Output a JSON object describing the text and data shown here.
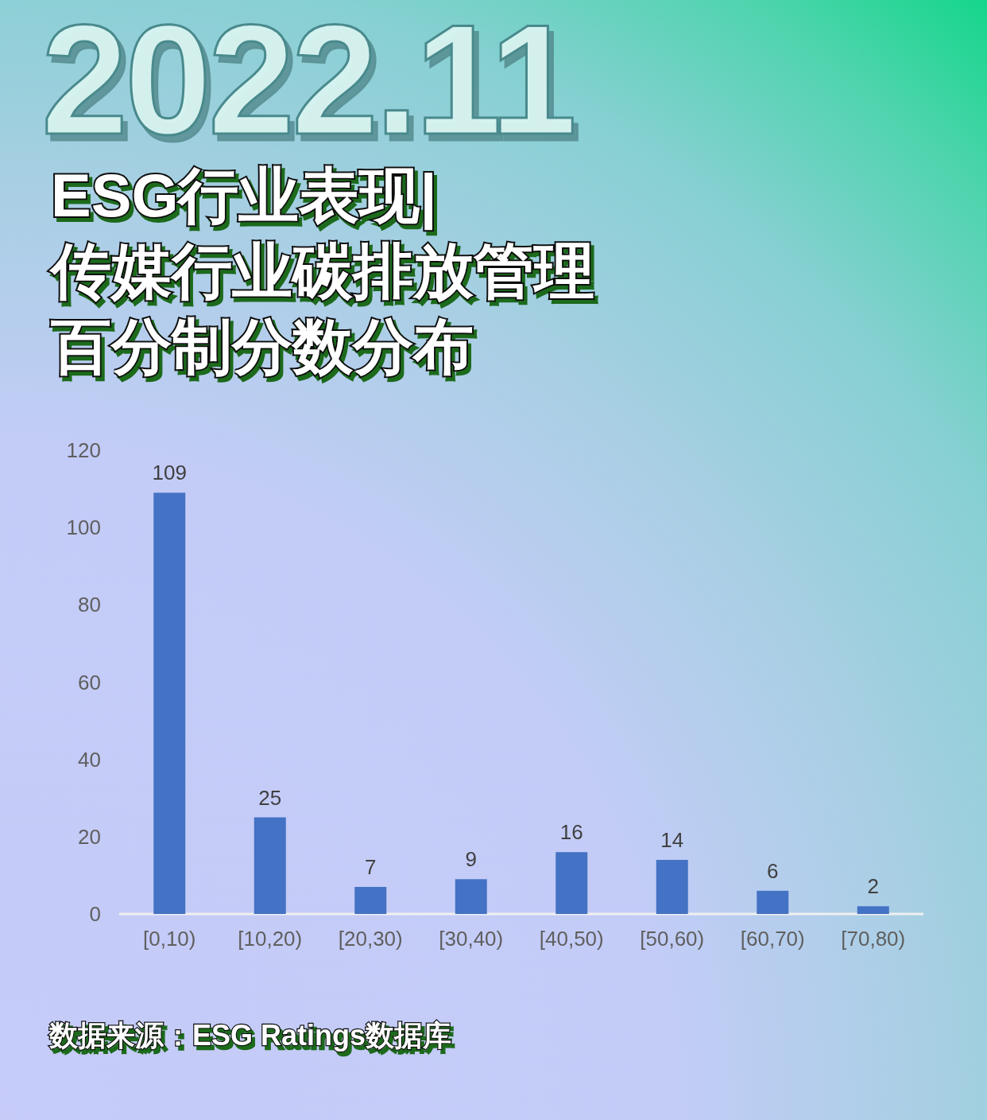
{
  "chart_data": {
    "type": "bar",
    "subtitle": "2022.11",
    "title": "ESG行业表现|传媒行业碳排放管理百分制分数分布",
    "categories": [
      "[0,10)",
      "[10,20)",
      "[20,30)",
      "[30,40)",
      "[40,50)",
      "[50,60)",
      "[60,70)",
      "[70,80)"
    ],
    "values": [
      109,
      25,
      7,
      9,
      16,
      14,
      6,
      2
    ],
    "color": "#4472c4",
    "ylim": [
      0,
      120
    ],
    "yticks": [
      0,
      20,
      40,
      60,
      80,
      100,
      120
    ],
    "data_labels": true,
    "annotations": [
      "数据来源：ESG Ratings数据库"
    ]
  }
}
